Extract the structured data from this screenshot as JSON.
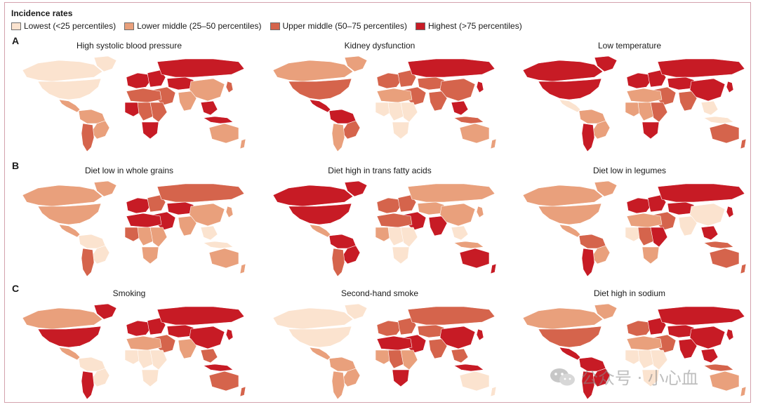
{
  "legend": {
    "title": "Incidence rates",
    "items": [
      {
        "label": "Lowest (<25 percentiles)",
        "color": "#fbe3cf"
      },
      {
        "label": "Lower middle (25–50 percentiles)",
        "color": "#e9a07c"
      },
      {
        "label": "Upper middle (50–75 percentiles)",
        "color": "#d5644c"
      },
      {
        "label": "Highest (>75 percentiles)",
        "color": "#c71b25"
      }
    ]
  },
  "rows": [
    {
      "letter": "A",
      "panels": [
        {
          "title": "High systolic blood pressure",
          "levels": {
            "na_north": 0,
            "na_main": 0,
            "greenland": 0,
            "central_am": 1,
            "sa_north": 1,
            "sa_east": 1,
            "sa_south": 2,
            "europe_west": 3,
            "europe_east": 3,
            "russia": 3,
            "middle_east": 2,
            "central_asia": 3,
            "south_asia": 1,
            "china": 1,
            "se_asia": 3,
            "indonesia": 3,
            "africa_north": 2,
            "africa_west": 3,
            "africa_central": 2,
            "africa_east": 2,
            "africa_south": 3,
            "australia": 1,
            "nz": 1,
            "japan": 2
          }
        },
        {
          "title": "Kidney dysfunction",
          "levels": {
            "na_north": 1,
            "na_main": 2,
            "greenland": 1,
            "central_am": 3,
            "sa_north": 3,
            "sa_east": 2,
            "sa_south": 1,
            "europe_west": 2,
            "europe_east": 2,
            "russia": 3,
            "middle_east": 2,
            "central_asia": 2,
            "south_asia": 2,
            "china": 2,
            "se_asia": 3,
            "indonesia": 2,
            "africa_north": 1,
            "africa_west": 0,
            "africa_central": 0,
            "africa_east": 0,
            "africa_south": 0,
            "australia": 1,
            "nz": 1,
            "japan": 3
          }
        },
        {
          "title": "Low temperature",
          "levels": {
            "na_north": 3,
            "na_main": 3,
            "greenland": 3,
            "central_am": 0,
            "sa_north": 1,
            "sa_east": 1,
            "sa_south": 3,
            "europe_west": 3,
            "europe_east": 3,
            "russia": 3,
            "middle_east": 2,
            "central_asia": 3,
            "south_asia": 2,
            "china": 3,
            "se_asia": 0,
            "indonesia": 0,
            "africa_north": 1,
            "africa_west": 1,
            "africa_central": 1,
            "africa_east": 2,
            "africa_south": 3,
            "australia": 2,
            "nz": 2,
            "japan": 3
          }
        }
      ]
    },
    {
      "letter": "B",
      "panels": [
        {
          "title": "Diet low in whole grains",
          "levels": {
            "na_north": 1,
            "na_main": 1,
            "greenland": 1,
            "central_am": 1,
            "sa_north": 0,
            "sa_east": 0,
            "sa_south": 2,
            "europe_west": 3,
            "europe_east": 2,
            "russia": 2,
            "middle_east": 3,
            "central_asia": 3,
            "south_asia": 1,
            "china": 1,
            "se_asia": 0,
            "indonesia": 0,
            "africa_north": 3,
            "africa_west": 2,
            "africa_central": 1,
            "africa_east": 1,
            "africa_south": 1,
            "australia": 1,
            "nz": 1,
            "japan": 1
          }
        },
        {
          "title": "Diet high in trans fatty acids",
          "levels": {
            "na_north": 3,
            "na_main": 3,
            "greenland": 3,
            "central_am": 1,
            "sa_north": 3,
            "sa_east": 3,
            "sa_south": 2,
            "europe_west": 2,
            "europe_east": 2,
            "russia": 1,
            "middle_east": 3,
            "central_asia": 1,
            "south_asia": 3,
            "china": 1,
            "se_asia": 0,
            "indonesia": 1,
            "africa_north": 2,
            "africa_west": 1,
            "africa_central": 0,
            "africa_east": 0,
            "africa_south": 0,
            "australia": 3,
            "nz": 3,
            "japan": 1
          }
        },
        {
          "title": "Diet low in legumes",
          "levels": {
            "na_north": 1,
            "na_main": 1,
            "greenland": 1,
            "central_am": 1,
            "sa_north": 2,
            "sa_east": 1,
            "sa_south": 3,
            "europe_west": 3,
            "europe_east": 3,
            "russia": 3,
            "middle_east": 2,
            "central_asia": 3,
            "south_asia": 0,
            "china": 0,
            "se_asia": 3,
            "indonesia": 2,
            "africa_north": 1,
            "africa_west": 0,
            "africa_central": 2,
            "africa_east": 3,
            "africa_south": 1,
            "australia": 2,
            "nz": 2,
            "japan": 3
          }
        }
      ]
    },
    {
      "letter": "C",
      "panels": [
        {
          "title": "Smoking",
          "levels": {
            "na_north": 1,
            "na_main": 3,
            "greenland": 3,
            "central_am": 1,
            "sa_north": 0,
            "sa_east": 0,
            "sa_south": 3,
            "europe_west": 3,
            "europe_east": 3,
            "russia": 3,
            "middle_east": 2,
            "central_asia": 3,
            "south_asia": 1,
            "china": 3,
            "se_asia": 2,
            "indonesia": 3,
            "africa_north": 1,
            "africa_west": 0,
            "africa_central": 0,
            "africa_east": 0,
            "africa_south": 0,
            "australia": 2,
            "nz": 2,
            "japan": 3
          }
        },
        {
          "title": "Second-hand smoke",
          "levels": {
            "na_north": 0,
            "na_main": 0,
            "greenland": 0,
            "central_am": 1,
            "sa_north": 1,
            "sa_east": 1,
            "sa_south": 1,
            "europe_west": 2,
            "europe_east": 2,
            "russia": 2,
            "middle_east": 3,
            "central_asia": 2,
            "south_asia": 2,
            "china": 3,
            "se_asia": 2,
            "indonesia": 3,
            "africa_north": 3,
            "africa_west": 1,
            "africa_central": 2,
            "africa_east": 1,
            "africa_south": 3,
            "australia": 0,
            "nz": 0,
            "japan": 3
          }
        },
        {
          "title": "Diet high in sodium",
          "levels": {
            "na_north": 1,
            "na_main": 2,
            "greenland": 1,
            "central_am": 3,
            "sa_north": 3,
            "sa_east": 3,
            "sa_south": 3,
            "europe_west": 2,
            "europe_east": 3,
            "russia": 3,
            "middle_east": 2,
            "central_asia": 3,
            "south_asia": 3,
            "china": 3,
            "se_asia": 3,
            "indonesia": 2,
            "africa_north": 1,
            "africa_west": 0,
            "africa_central": 0,
            "africa_east": 0,
            "africa_south": 0,
            "australia": 1,
            "nz": 1,
            "japan": 3
          }
        }
      ]
    }
  ],
  "watermark": {
    "text": "公众号 · 小心血"
  }
}
